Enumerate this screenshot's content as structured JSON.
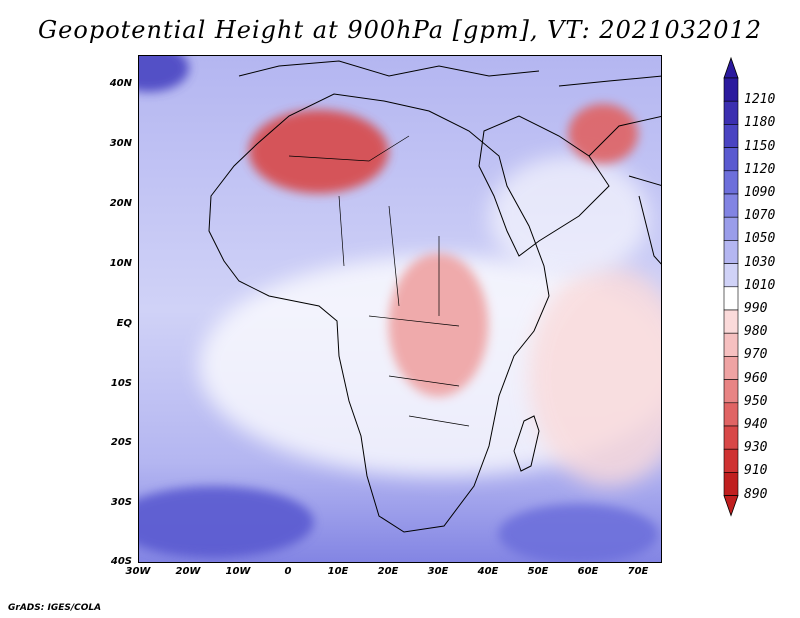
{
  "title": "Geopotential Height at 900hPa [gpm], VT: 2021032012",
  "credit": "GrADS: IGES/COLA",
  "axes": {
    "lon_ticks": [
      "30W",
      "20W",
      "10W",
      "0",
      "10E",
      "20E",
      "30E",
      "40E",
      "50E",
      "60E",
      "70E"
    ],
    "lat_ticks": [
      "40N",
      "30N",
      "20N",
      "10N",
      "EQ",
      "10S",
      "20S",
      "30S",
      "40S"
    ],
    "lon_range": [
      -30,
      75
    ],
    "lat_range": [
      -40,
      45
    ]
  },
  "colorbar": {
    "levels": [
      "1210",
      "1180",
      "1150",
      "1120",
      "1090",
      "1070",
      "1050",
      "1030",
      "1010",
      "990",
      "980",
      "970",
      "960",
      "950",
      "940",
      "930",
      "910",
      "890"
    ],
    "colors": [
      "#2b1a9e",
      "#3b2fb0",
      "#4a44c2",
      "#5a5ad0",
      "#6d6fdb",
      "#8284e3",
      "#9a9dea",
      "#b4b6f1",
      "#d0d2f7",
      "#ffffff",
      "#fbdada",
      "#f6c0c0",
      "#efa3a3",
      "#e88484",
      "#e06464",
      "#d84848",
      "#cf3232",
      "#c01f1f"
    ]
  },
  "regions": [
    {
      "name": "sahara-high",
      "lon": 6,
      "lat": 29,
      "rx": 14,
      "ry": 7,
      "color": "#d84848"
    },
    {
      "name": "iran-high",
      "lon": 63,
      "lat": 32,
      "rx": 7,
      "ry": 5,
      "color": "#e06464"
    },
    {
      "name": "east-africa-high",
      "lon": 30,
      "lat": 0,
      "rx": 10,
      "ry": 12,
      "color": "#efa3a3"
    },
    {
      "name": "south-ocean-low-w",
      "lon": -15,
      "lat": -33,
      "rx": 20,
      "ry": 6,
      "color": "#5a5ad0"
    },
    {
      "name": "south-ocean-low-e",
      "lon": 58,
      "lat": -35,
      "rx": 16,
      "ry": 5,
      "color": "#6d6fdb"
    },
    {
      "name": "northwest-low",
      "lon": -28,
      "lat": 43,
      "rx": 8,
      "ry": 4,
      "color": "#4a44c2"
    }
  ]
}
